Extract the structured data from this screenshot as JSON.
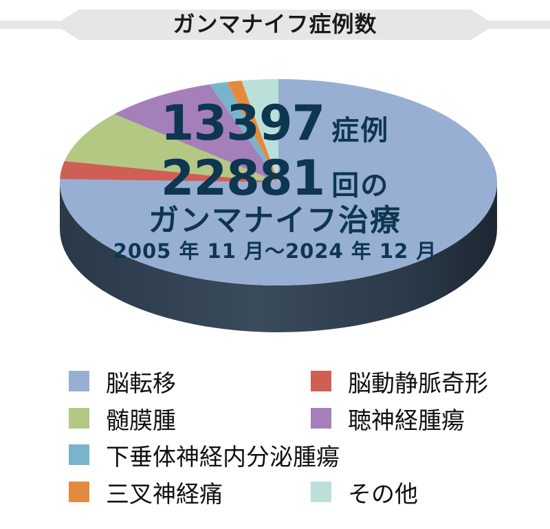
{
  "title": "ガンマナイフ症例数",
  "stats": {
    "cases_number": "13397",
    "cases_unit": "症例",
    "treatments_number": "22881",
    "treatments_unit": "回の",
    "treatment_name": "ガンマナイフ治療",
    "period": "2005 年 11 月〜2024 年 12 月"
  },
  "chart_data": {
    "type": "pie",
    "slices": [
      {
        "label": "脳転移",
        "value": 75.5,
        "color": "#97afd2"
      },
      {
        "label": "脳動静脈奇形",
        "value": 2.8,
        "color": "#cf5e55"
      },
      {
        "label": "髄膜腫",
        "value": 8.2,
        "color": "#b2c883"
      },
      {
        "label": "聴神経腫瘍",
        "value": 8.4,
        "color": "#a47fba"
      },
      {
        "label": "下垂体神経内分泌腫瘍",
        "value": 1.3,
        "color": "#78b4cc"
      },
      {
        "label": "三叉神経痛",
        "value": 1.1,
        "color": "#e38a3f"
      },
      {
        "label": "その他",
        "value": 2.7,
        "color": "#bbe0d9"
      }
    ],
    "legend": "bottom"
  }
}
